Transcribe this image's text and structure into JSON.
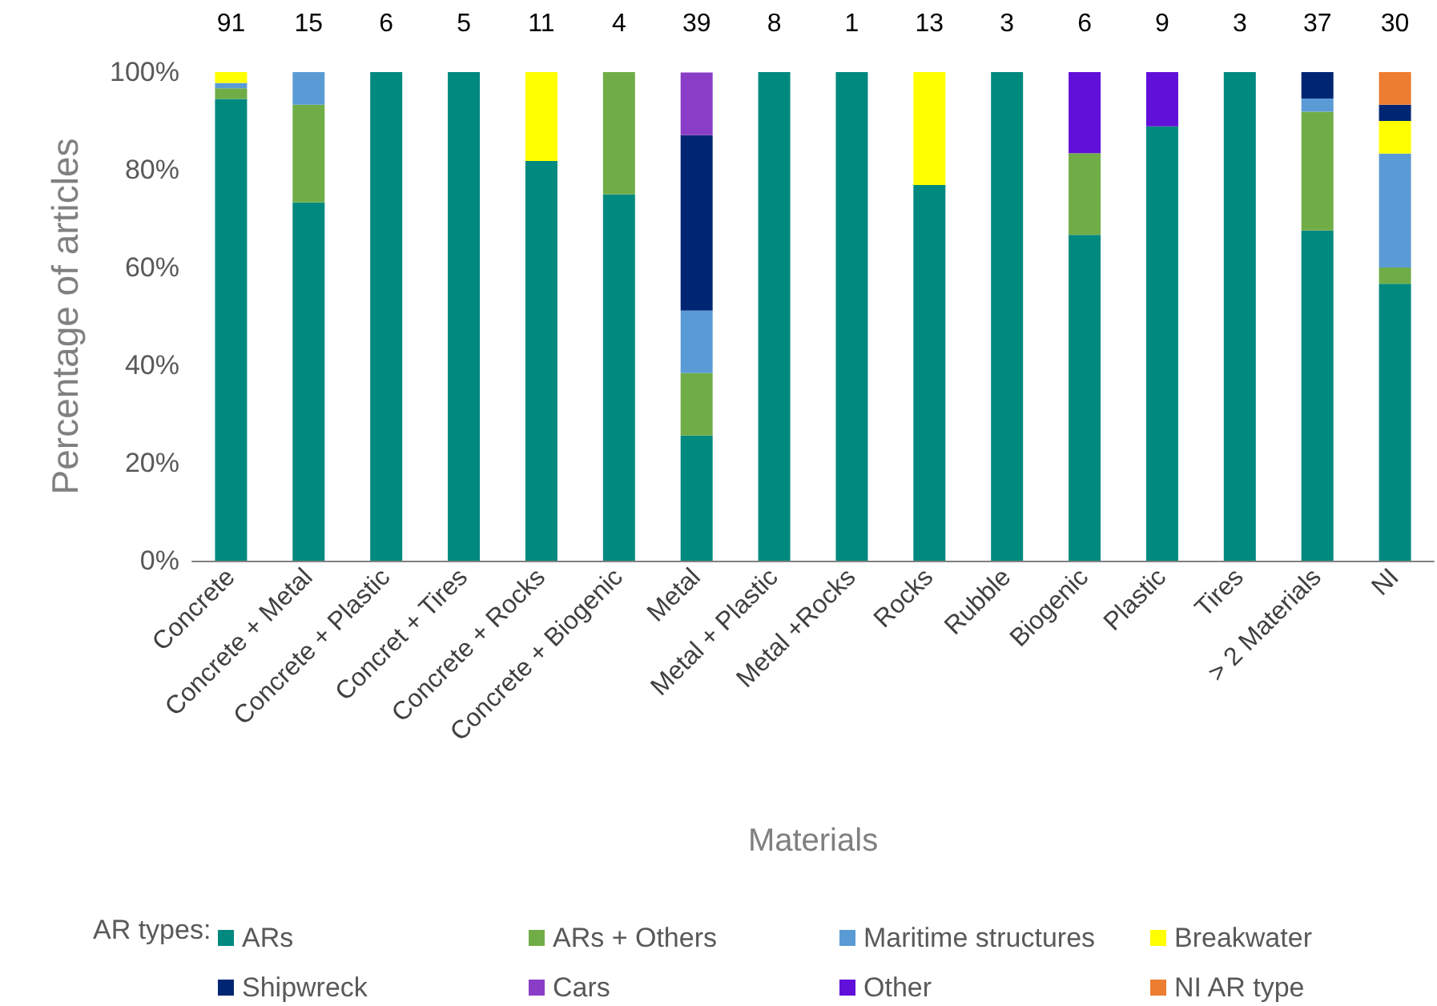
{
  "chart_data": {
    "type": "bar",
    "stacked": true,
    "xlabel": "Materials",
    "ylabel": "Percentage of articles",
    "legend_title": "AR types:",
    "legend": "bottom",
    "grid": false,
    "categories": [
      "Concrete",
      "Concrete + Metal",
      "Concrete + Plastic",
      "Concret + Tires",
      "Concrete + Rocks",
      "Concrete + Biogenic",
      "Metal",
      "Metal + Plastic",
      "Metal +Rocks",
      "Rocks",
      "Rubble",
      "Biogenic",
      "Plastic",
      "Tires",
      "> 2 Materials",
      "NI"
    ],
    "ylim": [
      0,
      100
    ],
    "yticks": [
      {
        "value": 0,
        "label": "0%"
      },
      {
        "value": 20,
        "label": "20%"
      },
      {
        "value": 40,
        "label": "40%"
      },
      {
        "value": 60,
        "label": "60%"
      },
      {
        "value": 80,
        "label": "80%"
      },
      {
        "value": 100,
        "label": "100%"
      }
    ],
    "series": [
      {
        "name": "ARs",
        "color": "#00897f",
        "values": [
          94.5,
          73.3,
          100,
          100,
          81.8,
          75,
          25.6,
          100,
          100,
          76.9,
          100,
          66.7,
          88.9,
          100,
          67.6,
          56.7
        ]
      },
      {
        "name": "ARs + Others",
        "color": "#70ad47",
        "values": [
          2.2,
          20,
          null,
          null,
          null,
          25,
          12.8,
          null,
          null,
          null,
          null,
          16.7,
          null,
          null,
          24.3,
          3.3
        ]
      },
      {
        "name": "Maritime structures",
        "color": "#5b9bd5",
        "values": [
          1.1,
          6.7,
          null,
          null,
          null,
          null,
          12.8,
          null,
          null,
          null,
          null,
          null,
          null,
          null,
          2.7,
          23.3
        ]
      },
      {
        "name": "Breakwater",
        "color": "#ffff00",
        "values": [
          2.2,
          null,
          null,
          null,
          18.2,
          null,
          null,
          null,
          null,
          23.1,
          null,
          null,
          null,
          null,
          null,
          6.7
        ]
      },
      {
        "name": "Shipwreck",
        "color": "#002673",
        "values": [
          null,
          null,
          null,
          null,
          null,
          null,
          35.9,
          null,
          null,
          null,
          null,
          null,
          null,
          null,
          5.4,
          3.3
        ]
      },
      {
        "name": "Cars",
        "color": "#8a3ec7",
        "values": [
          null,
          null,
          null,
          null,
          null,
          null,
          12.8,
          null,
          null,
          null,
          null,
          null,
          null,
          null,
          null,
          null
        ]
      },
      {
        "name": "Other",
        "color": "#6010d8",
        "values": [
          null,
          null,
          null,
          null,
          null,
          null,
          null,
          null,
          null,
          null,
          null,
          16.7,
          11.1,
          null,
          null,
          null
        ]
      },
      {
        "name": "NI AR type",
        "color": "#ed7d31",
        "values": [
          null,
          null,
          null,
          null,
          null,
          null,
          null,
          null,
          null,
          null,
          null,
          null,
          null,
          null,
          null,
          6.7
        ]
      }
    ],
    "annotations": [
      {
        "text": "91",
        "x": "Concrete",
        "y": 100
      },
      {
        "text": "15",
        "x": "Concrete + Metal",
        "y": 100
      },
      {
        "text": "6",
        "x": "Concrete + Plastic",
        "y": 100
      },
      {
        "text": "5",
        "x": "Concret + Tires",
        "y": 100
      },
      {
        "text": "11",
        "x": "Concrete + Rocks",
        "y": 100
      },
      {
        "text": "4",
        "x": "Concrete + Biogenic",
        "y": 100
      },
      {
        "text": "39",
        "x": "Metal",
        "y": 100
      },
      {
        "text": "8",
        "x": "Metal + Plastic",
        "y": 100
      },
      {
        "text": "1",
        "x": "Metal +Rocks",
        "y": 100
      },
      {
        "text": "13",
        "x": "Rocks",
        "y": 100
      },
      {
        "text": "3",
        "x": "Rubble",
        "y": 100
      },
      {
        "text": "6",
        "x": "Biogenic",
        "y": 100
      },
      {
        "text": "9",
        "x": "Plastic",
        "y": 100
      },
      {
        "text": "3",
        "x": "Tires",
        "y": 100
      },
      {
        "text": "37",
        "x": "> 2 Materials",
        "y": 100
      },
      {
        "text": "30",
        "x": "NI",
        "y": 100
      }
    ]
  }
}
